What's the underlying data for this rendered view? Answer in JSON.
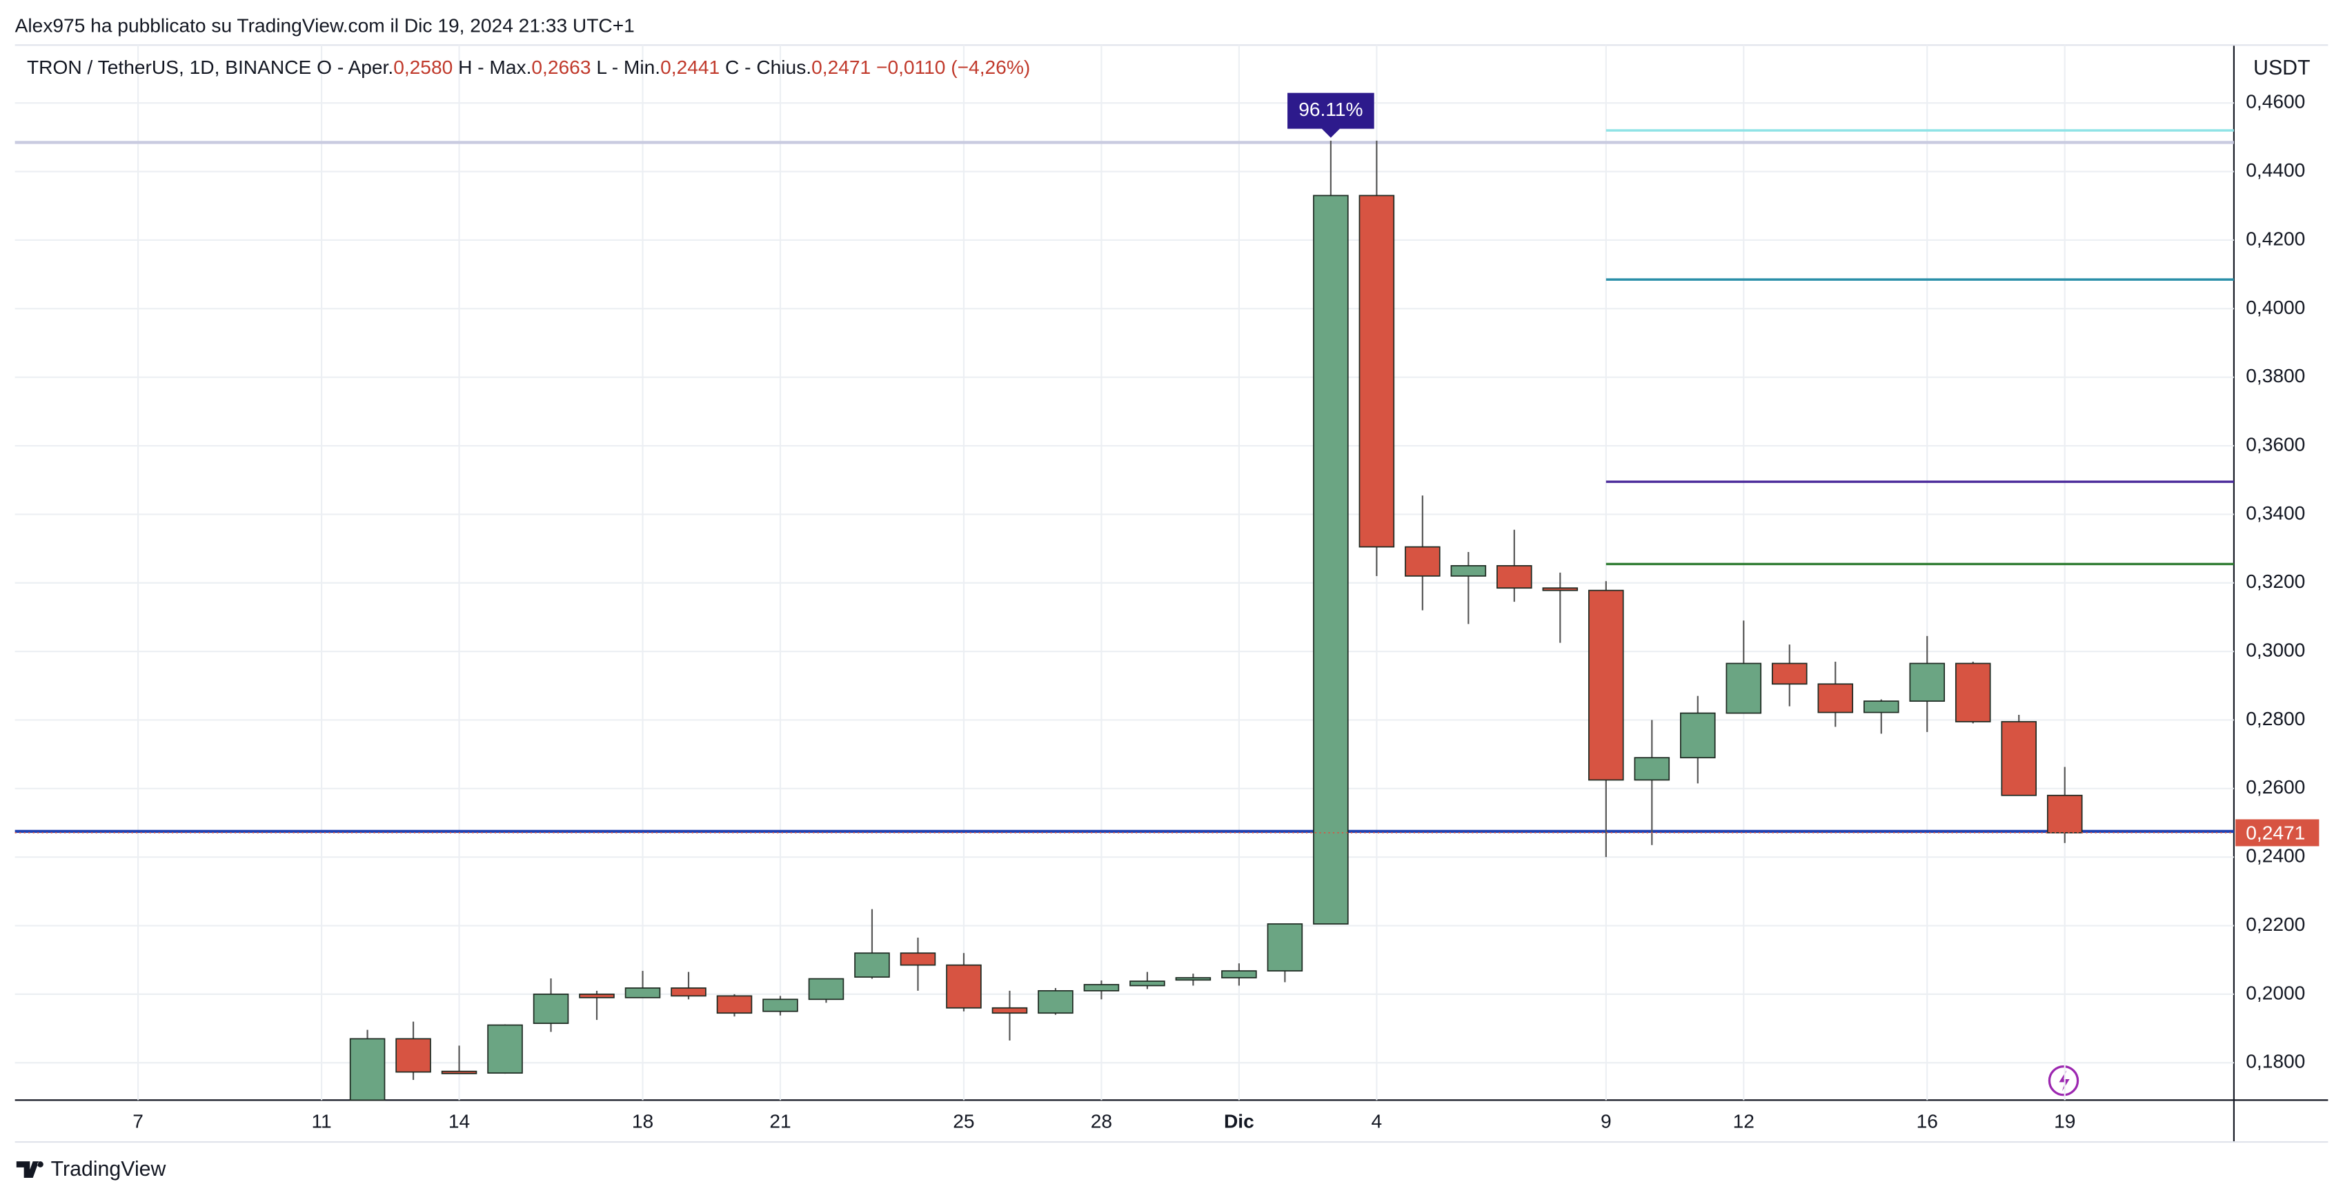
{
  "header": {
    "published": "Alex975 ha pubblicato su TradingView.com il Dic 19, 2024 21:33 UTC+1",
    "symbol": "TRON / TetherUS, 1D, BINANCE",
    "ohlc": [
      {
        "label": "O - Aper.",
        "value": "0,2580"
      },
      {
        "label": "H - Max.",
        "value": "0,2663"
      },
      {
        "label": "L - Min.",
        "value": "0,2441"
      },
      {
        "label": "C - Chius.",
        "value": "0,2471"
      }
    ],
    "change": "−0,0110 (−4,26%)"
  },
  "footer": {
    "brand": "TradingView"
  },
  "chart_data": {
    "type": "candlestick",
    "currency": "USDT",
    "last_price_label": "0,2471",
    "annotation": "96.11%",
    "categories": [
      null,
      null,
      "7",
      null,
      null,
      null,
      "11",
      null,
      null,
      "14",
      null,
      null,
      null,
      "18",
      null,
      null,
      "21",
      null,
      null,
      null,
      "25",
      null,
      null,
      "28",
      null,
      null,
      "Dic",
      null,
      null,
      "4",
      null,
      null,
      null,
      null,
      "9",
      null,
      null,
      "12",
      null,
      null,
      null,
      "16",
      null,
      null,
      "19",
      null,
      null,
      null
    ],
    "open": [
      null,
      null,
      null,
      null,
      null,
      null,
      null,
      0.169,
      0.187,
      0.1775,
      0.177,
      0.1915,
      0.2,
      0.199,
      0.2018,
      0.1995,
      0.195,
      0.1985,
      0.205,
      0.212,
      0.2085,
      0.196,
      0.1945,
      0.201,
      0.2025,
      0.2045,
      0.2048,
      0.2068,
      0.2205,
      0.433,
      0.3305,
      0.322,
      0.325,
      0.3185,
      0.3178,
      0.2625,
      0.269,
      0.282,
      0.2965,
      0.2905,
      0.2822,
      0.2855,
      0.2965,
      0.2795,
      0.258,
      null,
      null,
      null
    ],
    "high": [
      null,
      null,
      null,
      null,
      null,
      null,
      null,
      0.1896,
      0.192,
      0.185,
      0.1912,
      0.2046,
      0.201,
      0.2068,
      0.2065,
      0.2,
      0.1995,
      0.2045,
      0.2248,
      0.2165,
      0.212,
      0.201,
      0.2018,
      0.204,
      0.2065,
      0.206,
      0.209,
      0.2205,
      0.449,
      0.449,
      0.3455,
      0.329,
      0.3355,
      0.323,
      0.3205,
      0.28,
      0.287,
      0.309,
      0.302,
      0.297,
      0.286,
      0.3045,
      0.297,
      0.2815,
      0.2663,
      null,
      null,
      null
    ],
    "low": [
      null,
      null,
      null,
      null,
      null,
      null,
      null,
      0.168,
      0.175,
      0.1768,
      0.1768,
      0.189,
      0.1925,
      0.199,
      0.1985,
      0.1935,
      0.1938,
      0.1975,
      0.2045,
      0.201,
      0.195,
      0.1865,
      0.194,
      0.1985,
      0.2015,
      0.2025,
      0.2025,
      0.2035,
      0.2205,
      0.322,
      0.312,
      0.308,
      0.3145,
      0.3025,
      0.24,
      0.2435,
      0.2615,
      0.282,
      0.284,
      0.278,
      0.276,
      0.2765,
      0.279,
      0.258,
      0.2441,
      null,
      null,
      null
    ],
    "close": [
      null,
      null,
      null,
      null,
      null,
      null,
      null,
      0.187,
      0.1773,
      0.177,
      0.191,
      0.2,
      0.199,
      0.2018,
      0.1995,
      0.1945,
      0.1985,
      0.2045,
      0.212,
      0.2085,
      0.196,
      0.1945,
      0.201,
      0.2028,
      0.2038,
      0.2048,
      0.2068,
      0.2205,
      0.433,
      0.3305,
      0.322,
      0.325,
      0.3185,
      0.3178,
      0.2625,
      0.269,
      0.282,
      0.2965,
      0.2905,
      0.2822,
      0.2855,
      0.2965,
      0.2795,
      0.258,
      0.2471,
      null,
      null,
      null
    ],
    "up_color": "#6ba583",
    "down_color": "#d75442",
    "levels": [
      {
        "value": 0.4485,
        "color": "#c9cbe0"
      },
      {
        "value": 0.452,
        "color": "#8fe3e6"
      },
      {
        "value": 0.4085,
        "color": "#2a8fa8"
      },
      {
        "value": 0.3495,
        "color": "#4a2a9a"
      },
      {
        "value": 0.3255,
        "color": "#2f7d32"
      },
      {
        "value": 0.2475,
        "color": "#1f3fb0"
      }
    ],
    "ylim": [
      0.1691,
      0.4769
    ],
    "yticks": [
      {
        "value": 0.18,
        "label": "0,1800"
      },
      {
        "value": 0.2,
        "label": "0,2000"
      },
      {
        "value": 0.22,
        "label": "0,2200"
      },
      {
        "value": 0.24,
        "label": "0,2400"
      },
      {
        "value": 0.26,
        "label": "0,2600"
      },
      {
        "value": 0.28,
        "label": "0,2800"
      },
      {
        "value": 0.3,
        "label": "0,3000"
      },
      {
        "value": 0.32,
        "label": "0,3200"
      },
      {
        "value": 0.34,
        "label": "0,3400"
      },
      {
        "value": 0.36,
        "label": "0,3600"
      },
      {
        "value": 0.38,
        "label": "0,3800"
      },
      {
        "value": 0.4,
        "label": "0,4000"
      },
      {
        "value": 0.42,
        "label": "0,4200"
      },
      {
        "value": 0.44,
        "label": "0,4400"
      },
      {
        "value": 0.46,
        "label": "0,4600"
      }
    ],
    "grid": true
  }
}
